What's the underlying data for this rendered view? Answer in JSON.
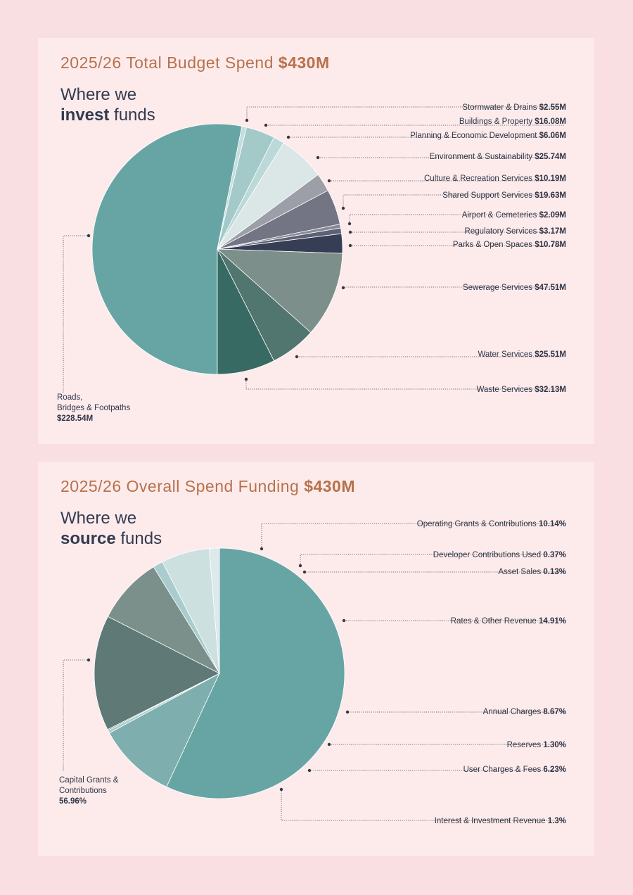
{
  "panel1": {
    "title_prefix": "2025/26 Total Budget Spend ",
    "title_amount": "$430M",
    "subtitle_line1": "Where we",
    "subtitle_bold": "invest",
    "subtitle_rest": " funds"
  },
  "panel2": {
    "title_prefix": "2025/26 Overall Spend Funding ",
    "title_amount": "$430M",
    "subtitle_line1": "Where we",
    "subtitle_bold": "source",
    "subtitle_rest": " funds"
  },
  "chart_data": [
    {
      "type": "pie",
      "title": "2025/26 Total Budget Spend $430M",
      "categories": [
        "Roads, Bridges & Footpaths",
        "Stormwater & Drains",
        "Buildings & Property",
        "Planning & Economic Development",
        "Environment & Sustainability",
        "Culture & Recreation Services",
        "Shared Support Services",
        "Airport & Cemeteries",
        "Regulatory Services",
        "Parks & Open Spaces",
        "Sewerage Services",
        "Water Services",
        "Waste Services"
      ],
      "values": [
        228.54,
        2.55,
        16.08,
        6.06,
        25.74,
        10.19,
        19.63,
        2.09,
        3.17,
        10.78,
        47.51,
        25.51,
        32.13
      ],
      "value_labels": [
        "$228.54M",
        "$2.55M",
        "$16.08M",
        "$6.06M",
        "$25.74M",
        "$10.19M",
        "$19.63M",
        "$2.09M",
        "$3.17M",
        "$10.78M",
        "$47.51M",
        "$25.51M",
        "$32.13M"
      ],
      "colors": [
        "#67a5a4",
        "#c3dedd",
        "#a3c9c9",
        "#bcd9d9",
        "#dbe6e7",
        "#9c9ea8",
        "#737585",
        "#888a97",
        "#5d6175",
        "#353e55",
        "#7d8f8b",
        "#51756f",
        "#376a62"
      ]
    },
    {
      "type": "pie",
      "title": "2025/26 Overall Spend Funding $430M",
      "categories": [
        "Capital Grants & Contributions",
        "Operating Grants & Contributions",
        "Developer Contributions Used",
        "Asset Sales",
        "Rates & Other Revenue",
        "Annual Charges",
        "Reserves",
        "User Charges & Fees",
        "Interest & Investment Revenue"
      ],
      "values": [
        56.96,
        10.14,
        0.37,
        0.13,
        14.91,
        8.67,
        1.3,
        6.23,
        1.3
      ],
      "value_labels": [
        "56.96%",
        "10.14%",
        "0.37%",
        "0.13%",
        "14.91%",
        "8.67%",
        "1.30%",
        "6.23%",
        "1.3%"
      ],
      "colors": [
        "#67a5a4",
        "#7eaeae",
        "#a9cccc",
        "#5d7d7a",
        "#5e7976",
        "#7c908b",
        "#aacccd",
        "#cde0e0",
        "#dde9ea"
      ]
    }
  ]
}
